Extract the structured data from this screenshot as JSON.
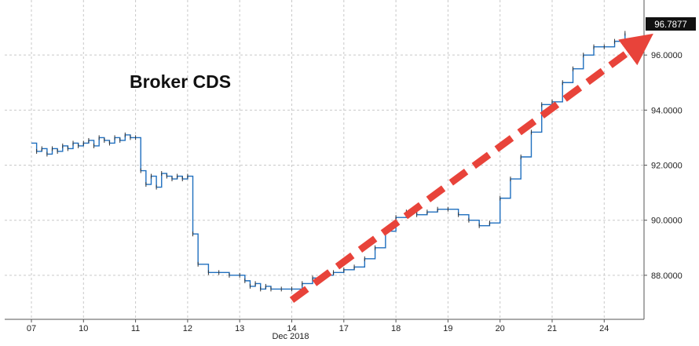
{
  "chart_data": {
    "type": "line",
    "title": "Broker CDS",
    "xlabel": "Dec 2018",
    "ylabel": "",
    "categories": [
      "07",
      "10",
      "11",
      "12",
      "13",
      "14",
      "17",
      "18",
      "19",
      "20",
      "21",
      "24"
    ],
    "y_ticks": [
      "88.0000",
      "90.0000",
      "92.0000",
      "94.0000",
      "96.0000"
    ],
    "y_tick_values": [
      88,
      90,
      92,
      94,
      96
    ],
    "ylim": [
      86.4,
      98.0
    ],
    "last_value_label": "96.7877",
    "last_value": 96.7877,
    "grid": true,
    "series": [
      {
        "color": "#1f6fbf",
        "step_color": "#333333",
        "x": [
          0,
          0.1,
          0.2,
          0.3,
          0.4,
          0.5,
          0.6,
          0.7,
          0.8,
          0.9,
          1.0,
          1.1,
          1.2,
          1.3,
          1.4,
          1.5,
          1.6,
          1.7,
          1.8,
          1.9,
          2.0,
          2.1,
          2.2,
          2.3,
          2.4,
          2.5,
          2.6,
          2.7,
          2.8,
          2.9,
          3.0,
          3.1,
          3.2,
          3.4,
          3.6,
          3.8,
          4.0,
          4.1,
          4.2,
          4.3,
          4.4,
          4.5,
          4.6,
          4.8,
          5.0,
          5.2,
          5.4,
          5.6,
          5.8,
          6.0,
          6.2,
          6.4,
          6.6,
          6.8,
          7.0,
          7.2,
          7.4,
          7.6,
          7.8,
          8.0,
          8.2,
          8.4,
          8.6,
          8.8,
          9.0,
          9.2,
          9.4,
          9.6,
          9.8,
          10.0,
          10.2,
          10.4,
          10.6,
          10.8,
          11.0,
          11.2,
          11.4
        ],
        "values": [
          92.8,
          92.5,
          92.6,
          92.4,
          92.6,
          92.5,
          92.7,
          92.6,
          92.8,
          92.7,
          92.8,
          92.9,
          92.7,
          93.0,
          92.9,
          92.8,
          93.0,
          92.9,
          93.1,
          93.0,
          93.0,
          91.8,
          91.3,
          91.6,
          91.2,
          91.7,
          91.6,
          91.5,
          91.6,
          91.5,
          91.6,
          89.5,
          88.4,
          88.1,
          88.1,
          88.0,
          88.0,
          87.8,
          87.6,
          87.7,
          87.5,
          87.6,
          87.5,
          87.5,
          87.5,
          87.7,
          87.9,
          88.0,
          88.1,
          88.2,
          88.3,
          88.6,
          89.0,
          89.6,
          90.1,
          90.3,
          90.2,
          90.3,
          90.4,
          90.4,
          90.2,
          90.0,
          89.8,
          89.9,
          90.8,
          91.5,
          92.3,
          93.2,
          94.2,
          94.3,
          95.0,
          95.5,
          96.0,
          96.3,
          96.3,
          96.5,
          96.79
        ]
      }
    ],
    "annotations": [
      {
        "type": "dashed-arrow",
        "color": "#e8433a",
        "from": [
          5.0,
          87.1
        ],
        "to": [
          11.6,
          96.3
        ]
      }
    ]
  }
}
